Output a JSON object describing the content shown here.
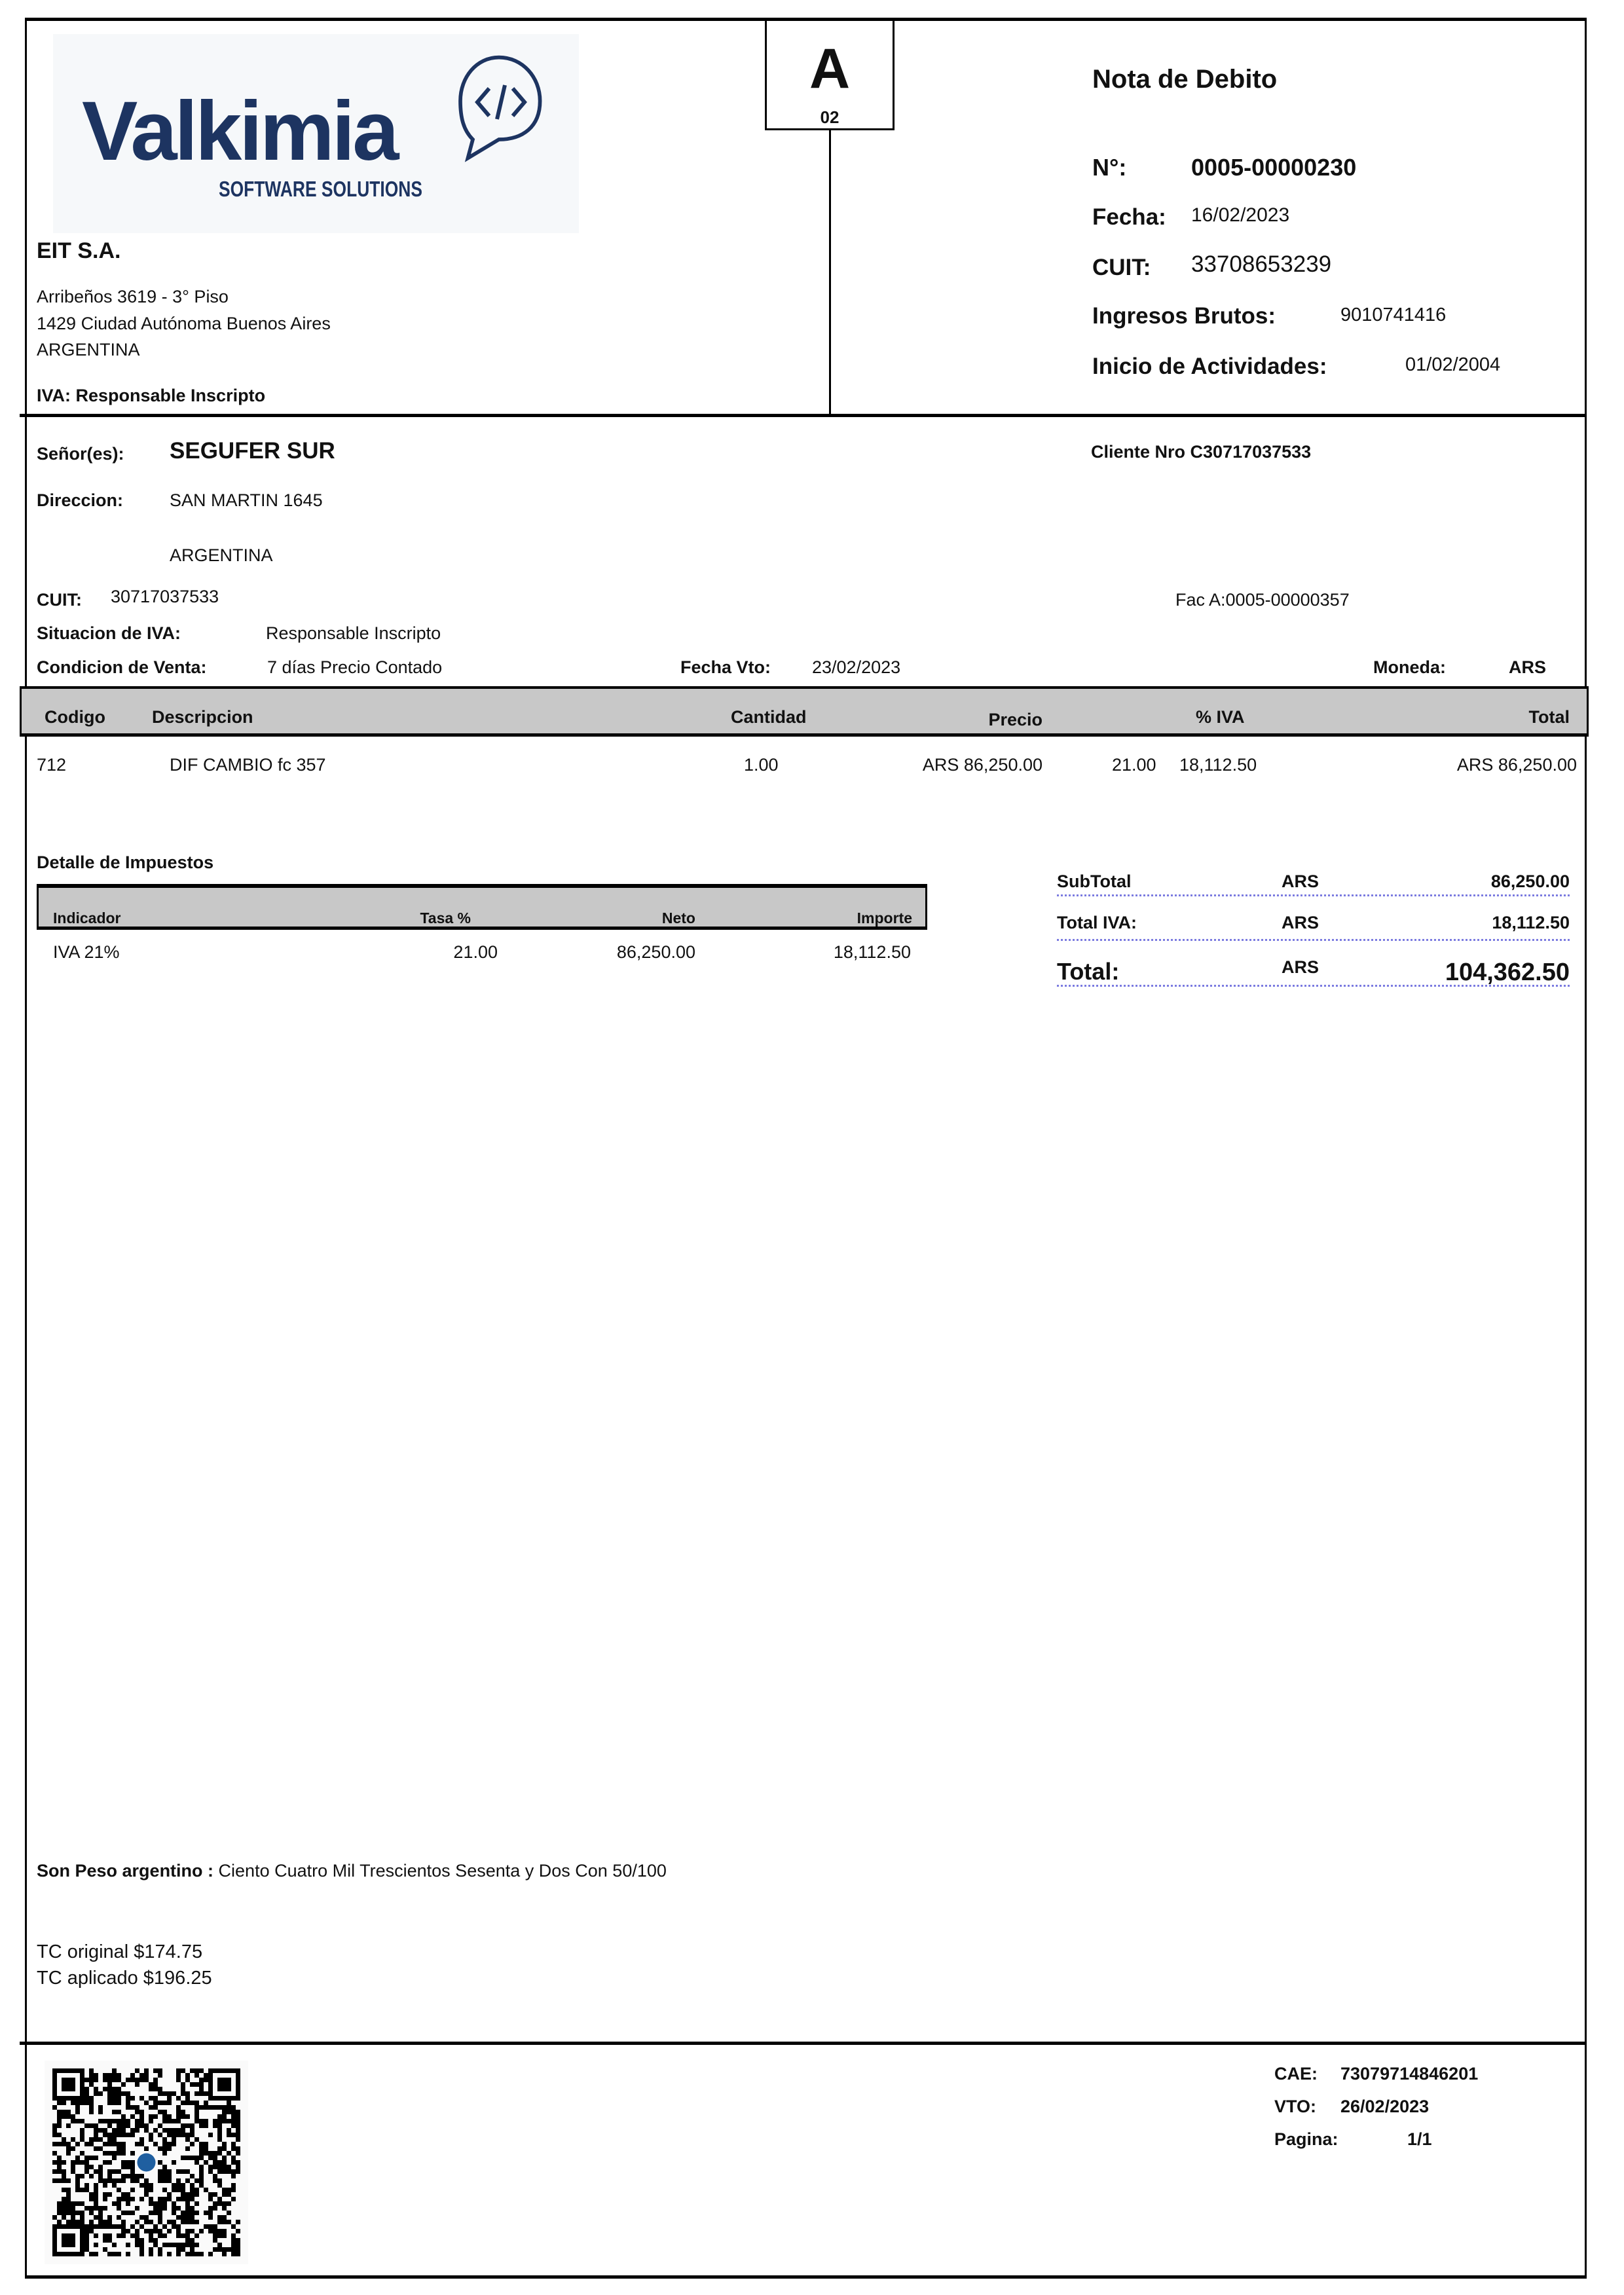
{
  "header": {
    "logo": {
      "brand": "Valkimia",
      "tagline": "SOFTWARE SOLUTIONS",
      "color": "#1d3461"
    },
    "letter": "A",
    "letter_code": "02",
    "doc_type": "Nota de Debito",
    "numero_label": "N°:",
    "numero": "0005-00000230",
    "fecha_label": "Fecha:",
    "fecha": "16/02/2023",
    "cuit_label": "CUIT:",
    "cuit": "33708653239",
    "iibb_label": "Ingresos Brutos:",
    "iibb": "9010741416",
    "inicio_label": "Inicio de Actividades:",
    "inicio": "01/02/2004"
  },
  "emisor": {
    "name": "EIT S.A.",
    "address1": "Arribeños 3619 - 3° Piso",
    "address2": "1429  Ciudad Autónoma Buenos Aires",
    "country": "ARGENTINA",
    "iva": "IVA: Responsable Inscripto"
  },
  "cliente": {
    "senor_label": "Señor(es):",
    "name": "SEGUFER SUR",
    "nro": "Cliente Nro  C30717037533",
    "direccion_label": "Direccion:",
    "direccion": "SAN MARTIN 1645",
    "country": "ARGENTINA",
    "cuit_label": "CUIT:",
    "cuit": "30717037533",
    "fac_ref": "Fac A:0005-00000357",
    "iva_label": "Situacion de IVA:",
    "iva": "Responsable Inscripto",
    "cond_label": "Condicion de Venta:",
    "cond": "7 días Precio Contado",
    "vto_label": "Fecha Vto:",
    "vto": "23/02/2023",
    "moneda_label": "Moneda:",
    "moneda": "ARS"
  },
  "items_table": {
    "headers": [
      "Codigo",
      "Descripcion",
      "Cantidad",
      "Precio",
      "% IVA",
      "Total"
    ],
    "rows": [
      {
        "codigo": "712",
        "desc": "DIF CAMBIO fc 357",
        "cantidad": "1.00",
        "precio": "ARS 86,250.00",
        "iva_pct": "21.00",
        "iva_amt": "18,112.50",
        "total": "ARS 86,250.00"
      }
    ]
  },
  "impuestos": {
    "title": "Detalle de Impuestos",
    "headers": [
      "Indicador",
      "Tasa %",
      "Neto",
      "Importe"
    ],
    "rows": [
      {
        "indicador": "IVA 21%",
        "tasa": "21.00",
        "neto": "86,250.00",
        "importe": "18,112.50"
      }
    ]
  },
  "totales": {
    "subtotal_label": "SubTotal",
    "subtotal_cur": "ARS",
    "subtotal": "86,250.00",
    "iva_label": "Total IVA:",
    "iva_cur": "ARS",
    "iva": "18,112.50",
    "total_label": "Total:",
    "total_cur": "ARS",
    "total": "104,362.50"
  },
  "footer": {
    "son_label": "Son Peso argentino :",
    "son_text": "Ciento Cuatro Mil Trescientos Sesenta y Dos Con 50/100",
    "tc_original": "TC original $174.75",
    "tc_aplicado": "TC aplicado $196.25",
    "cae_label": "CAE:",
    "cae": "73079714846201",
    "vto_label": "VTO:",
    "vto": "26/02/2023",
    "pagina_label": "Pagina:",
    "pagina": "1/1"
  }
}
